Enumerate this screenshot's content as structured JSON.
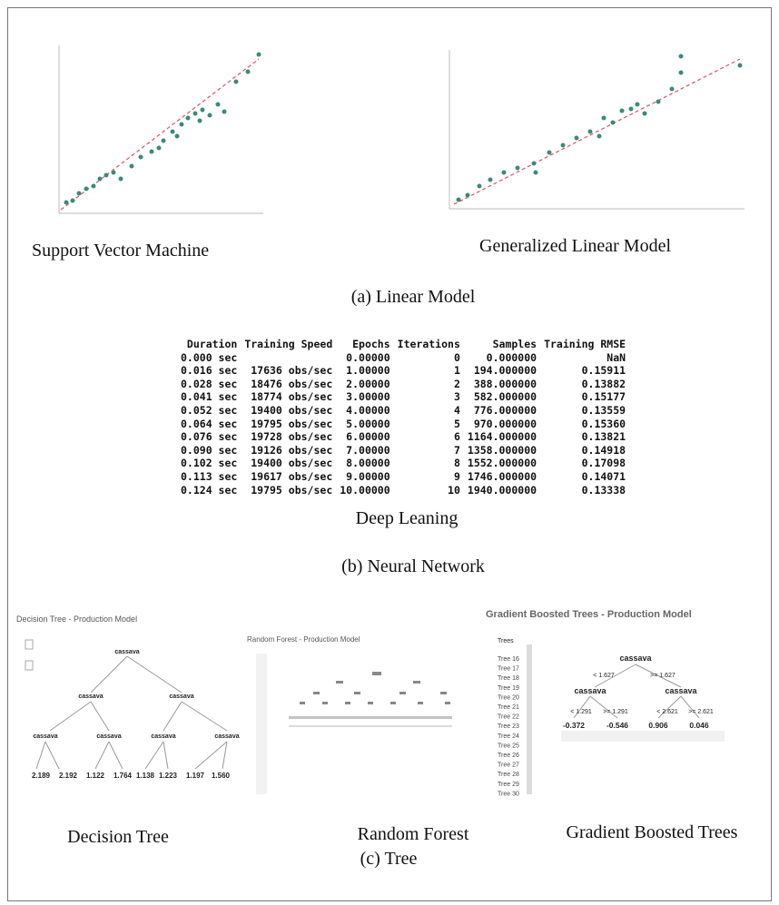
{
  "panel_a": {
    "plots": [
      {
        "label": "Support Vector Machine"
      },
      {
        "label": "Generalized Linear Model"
      }
    ],
    "caption": "(a)  Linear Model"
  },
  "panel_b": {
    "table": {
      "header": [
        "Duration",
        "Training Speed",
        "Epochs",
        "Iterations",
        "Samples",
        "Training RMSE"
      ],
      "rows": [
        [
          "0.000 sec",
          null,
          "0.00000",
          "0",
          "0.000000",
          "NaN"
        ],
        [
          "0.016 sec",
          "17636 obs/sec",
          "1.00000",
          "1",
          "194.000000",
          "0.15911"
        ],
        [
          "0.028 sec",
          "18476 obs/sec",
          "2.00000",
          "2",
          "388.000000",
          "0.13882"
        ],
        [
          "0.041 sec",
          "18774 obs/sec",
          "3.00000",
          "3",
          "582.000000",
          "0.15177"
        ],
        [
          "0.052 sec",
          "19400 obs/sec",
          "4.00000",
          "4",
          "776.000000",
          "0.13559"
        ],
        [
          "0.064 sec",
          "19795 obs/sec",
          "5.00000",
          "5",
          "970.000000",
          "0.15360"
        ],
        [
          "0.076 sec",
          "19728 obs/sec",
          "6.00000",
          "6",
          "1164.000000",
          "0.13821"
        ],
        [
          "0.090 sec",
          "19126 obs/sec",
          "7.00000",
          "7",
          "1358.000000",
          "0.14918"
        ],
        [
          "0.102 sec",
          "19400 obs/sec",
          "8.00000",
          "8",
          "1552.000000",
          "0.17098"
        ],
        [
          "0.113 sec",
          "19617 obs/sec",
          "9.00000",
          "9",
          "1746.000000",
          "0.14071"
        ],
        [
          "0.124 sec",
          "19795 obs/sec",
          "10.00000",
          "10",
          "1940.000000",
          "0.13338"
        ]
      ]
    },
    "label": "Deep Leaning",
    "caption": "(b) Neural Network"
  },
  "panel_c": {
    "decision_tree": {
      "title": "Decision Tree - Production Model",
      "node": "cassava",
      "leaves": [
        "2.189",
        "2.192",
        "1.122",
        "1.764",
        "1.138",
        "1.223",
        "1.197",
        "1.560"
      ],
      "label": "Decision Tree"
    },
    "random_forest": {
      "title": "Random Forest - Production Model",
      "label": "Random Forest"
    },
    "gradient_boosted": {
      "title": "Gradient Boosted Trees - Production Model",
      "list_header": "Trees",
      "trees": [
        "Tree 16",
        "Tree 17",
        "Tree 18",
        "Tree 19",
        "Tree 20",
        "Tree 21",
        "Tree 22",
        "Tree 23",
        "Tree 24",
        "Tree 25",
        "Tree 26",
        "Tree 27",
        "Tree 28",
        "Tree 29",
        "Tree 30"
      ],
      "node": "cassava",
      "root_split": [
        "< 1.627",
        ">= 1.627"
      ],
      "left_split": [
        "< 1.291",
        ">= 1.291"
      ],
      "right_split": [
        "< 2.621",
        ">= 2.621"
      ],
      "leaves": [
        "-0.372",
        "-0.546",
        "0.906",
        "0.046"
      ],
      "label": "Gradient Boosted Trees"
    },
    "caption": "(c) Tree"
  }
}
